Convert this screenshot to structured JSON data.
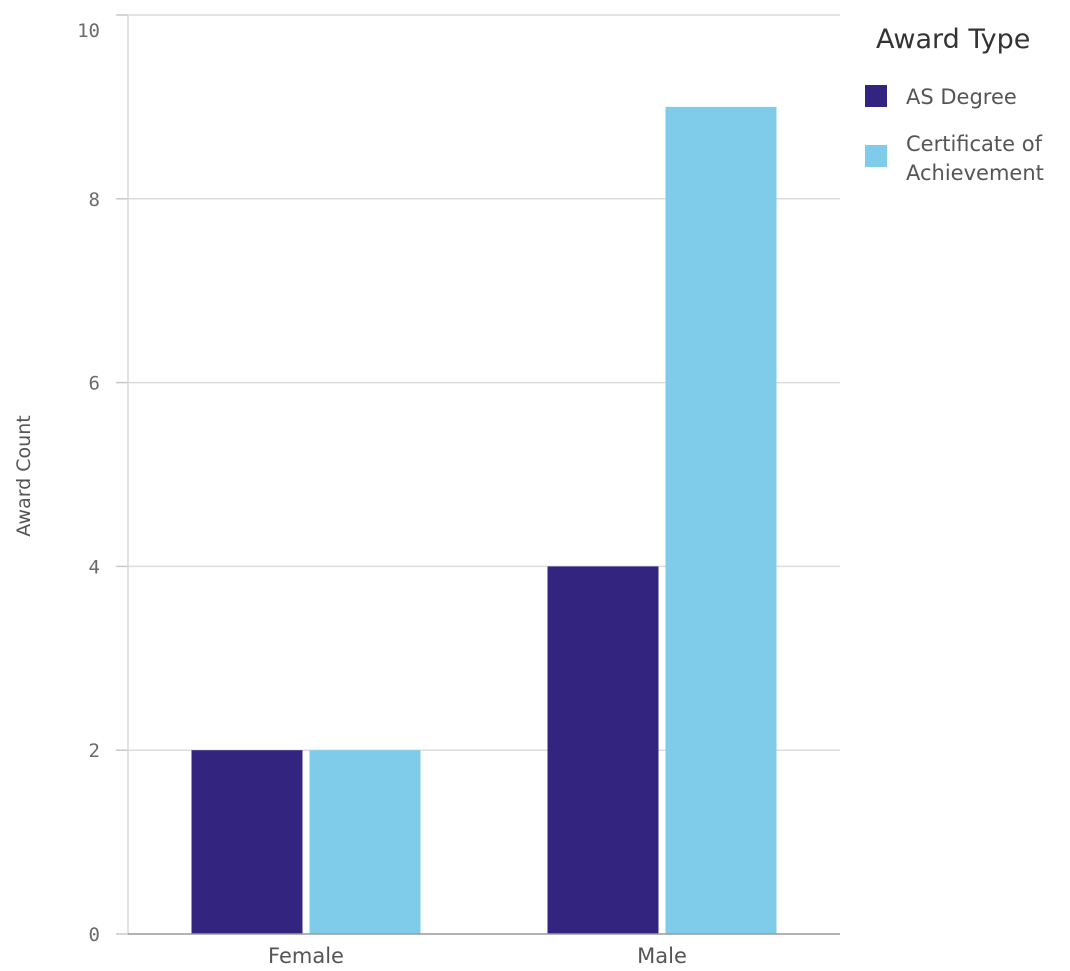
{
  "chart_data": {
    "type": "bar",
    "title": "",
    "xlabel": "",
    "ylabel": "Award Count",
    "ylim": [
      0,
      10
    ],
    "yticks": [
      0,
      2,
      4,
      6,
      8,
      10
    ],
    "grid": true,
    "categories": [
      "Female",
      "Male"
    ],
    "series": [
      {
        "name": "AS Degree",
        "values": [
          2,
          4
        ],
        "color": "#33247f"
      },
      {
        "name": "Certificate of Achievement",
        "values": [
          2,
          9
        ],
        "color": "#7ecbea"
      }
    ],
    "legend": {
      "title": "Award Type",
      "placement": "top-right"
    }
  }
}
